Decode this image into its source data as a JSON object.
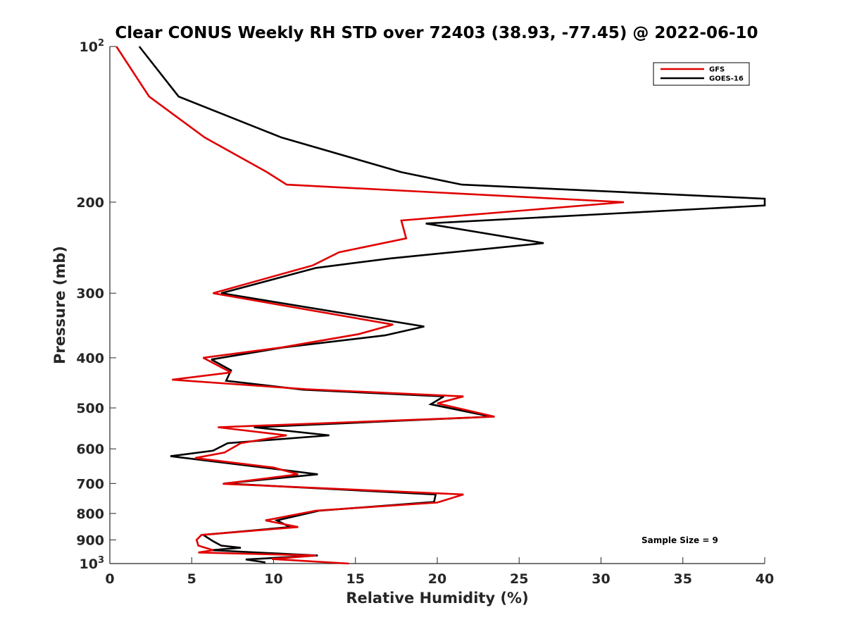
{
  "chart_data": {
    "type": "line",
    "title": "Clear CONUS Weekly RH STD over 72403 (38.93, -77.45) @ 2022-06-10",
    "xlabel": "Relative Humidity (%)",
    "ylabel": "Pressure (mb)",
    "xlim": [
      0,
      40
    ],
    "ylim": [
      100,
      1000
    ],
    "y_scale": "log",
    "y_reversed": true,
    "grid": false,
    "legend_position": "top-right",
    "x_ticks": [
      "0",
      "5",
      "10",
      "15",
      "20",
      "25",
      "30",
      "35",
      "40"
    ],
    "y_ticks": [
      {
        "value": 100,
        "base": "10",
        "exp": "2"
      },
      {
        "value": 200,
        "label": "200"
      },
      {
        "value": 300,
        "label": "300"
      },
      {
        "value": 400,
        "label": "400"
      },
      {
        "value": 500,
        "label": "500"
      },
      {
        "value": 600,
        "label": "600"
      },
      {
        "value": 700,
        "label": "700"
      },
      {
        "value": 800,
        "label": "800"
      },
      {
        "value": 900,
        "label": "900"
      },
      {
        "value": 1000,
        "base": "10",
        "exp": "3"
      }
    ],
    "annotation": "Sample Size = 9",
    "series": [
      {
        "name": "GFS",
        "color": "#e00000",
        "points": [
          [
            0.4,
            100
          ],
          [
            2.4,
            125
          ],
          [
            5.8,
            150
          ],
          [
            9.6,
            175
          ],
          [
            10.8,
            185
          ],
          [
            31.4,
            200
          ],
          [
            17.8,
            217
          ],
          [
            18.1,
            235
          ],
          [
            14.0,
            250
          ],
          [
            12.4,
            265
          ],
          [
            6.3,
            300
          ],
          [
            17.3,
            345
          ],
          [
            15.2,
            360
          ],
          [
            10.5,
            382
          ],
          [
            5.7,
            400
          ],
          [
            7.4,
            427
          ],
          [
            3.8,
            441
          ],
          [
            12.0,
            460
          ],
          [
            21.6,
            475
          ],
          [
            20.0,
            490
          ],
          [
            23.5,
            520
          ],
          [
            6.6,
            545
          ],
          [
            10.8,
            565
          ],
          [
            8.0,
            585
          ],
          [
            7.0,
            610
          ],
          [
            5.2,
            625
          ],
          [
            10.0,
            652
          ],
          [
            11.5,
            672
          ],
          [
            6.9,
            701
          ],
          [
            21.6,
            735
          ],
          [
            20.0,
            762
          ],
          [
            12.6,
            790
          ],
          [
            9.5,
            825
          ],
          [
            11.5,
            850
          ],
          [
            5.6,
            880
          ],
          [
            5.3,
            900
          ],
          [
            5.4,
            923
          ],
          [
            6.3,
            942
          ],
          [
            5.4,
            952
          ],
          [
            12.6,
            965
          ],
          [
            9.9,
            980
          ],
          [
            14.6,
            1000
          ]
        ]
      },
      {
        "name": "GOES-16",
        "color": "#000000",
        "points": [
          [
            1.8,
            100
          ],
          [
            4.2,
            125
          ],
          [
            10.5,
            150
          ],
          [
            17.8,
            175
          ],
          [
            21.5,
            185
          ],
          [
            40.0,
            197
          ],
          [
            40.0,
            203
          ],
          [
            19.3,
            220
          ],
          [
            26.5,
            240
          ],
          [
            17.1,
            257
          ],
          [
            12.6,
            268
          ],
          [
            6.8,
            300
          ],
          [
            19.2,
            348
          ],
          [
            16.8,
            362
          ],
          [
            10.6,
            382
          ],
          [
            6.2,
            403
          ],
          [
            7.4,
            423
          ],
          [
            7.1,
            443
          ],
          [
            11.8,
            461
          ],
          [
            20.4,
            475
          ],
          [
            19.6,
            492
          ],
          [
            23.3,
            520
          ],
          [
            8.8,
            545
          ],
          [
            13.4,
            565
          ],
          [
            7.2,
            585
          ],
          [
            6.3,
            605
          ],
          [
            3.7,
            620
          ],
          [
            9.4,
            652
          ],
          [
            12.7,
            672
          ],
          [
            7.0,
            700
          ],
          [
            19.9,
            735
          ],
          [
            19.8,
            760
          ],
          [
            12.8,
            790
          ],
          [
            10.2,
            825
          ],
          [
            11.0,
            850
          ],
          [
            5.7,
            880
          ],
          [
            6.3,
            905
          ],
          [
            6.8,
            923
          ],
          [
            8.0,
            932
          ],
          [
            6.2,
            942
          ],
          [
            12.7,
            965
          ],
          [
            8.3,
            982
          ],
          [
            9.5,
            995
          ]
        ]
      }
    ]
  }
}
